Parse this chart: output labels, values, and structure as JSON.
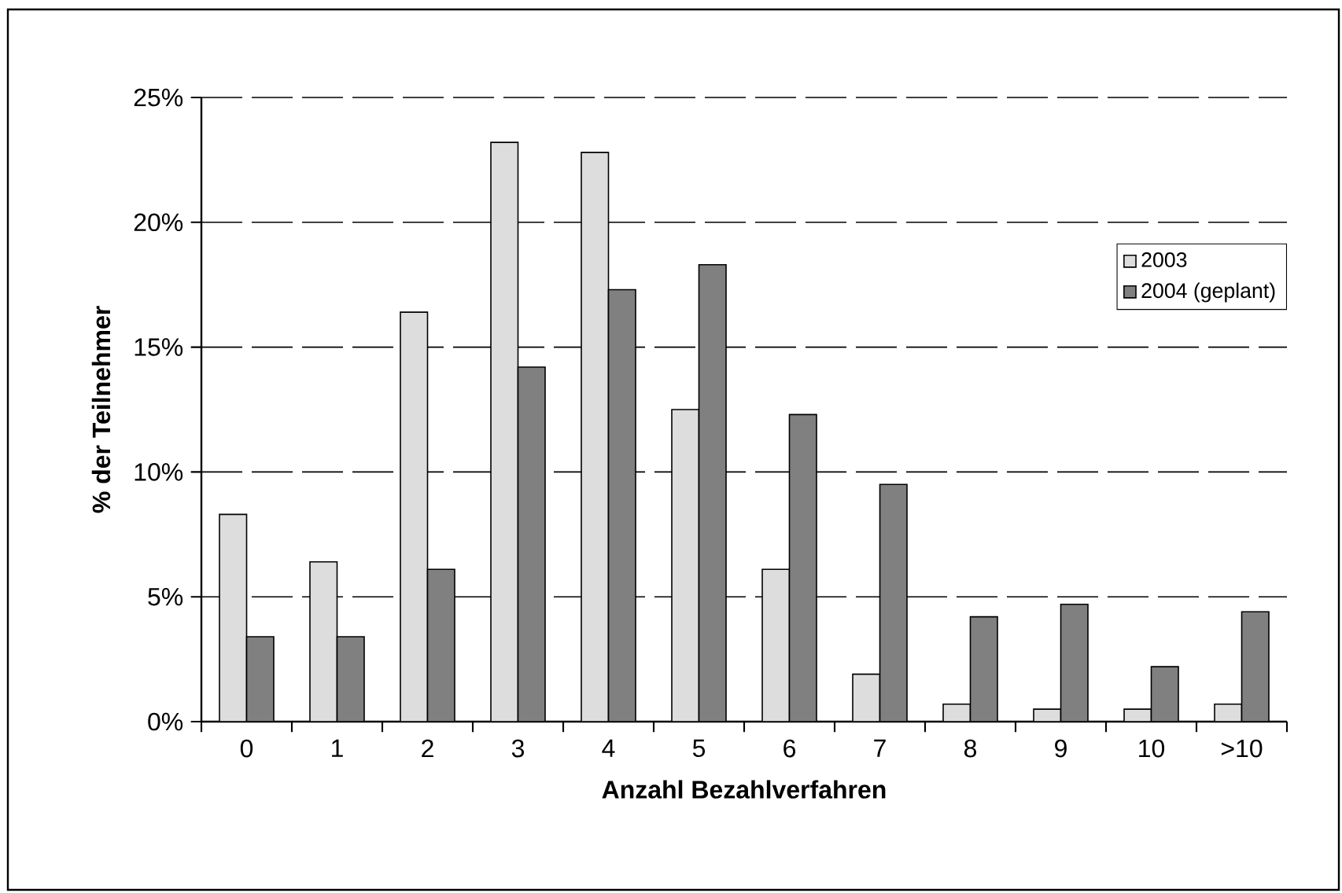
{
  "chart_data": {
    "type": "bar",
    "xlabel": "Anzahl Bezahlverfahren",
    "ylabel": "% der Teilnehmer",
    "categories": [
      "0",
      "1",
      "2",
      "3",
      "4",
      "5",
      "6",
      "7",
      "8",
      "9",
      "10",
      ">10"
    ],
    "series": [
      {
        "name": "2003",
        "color": "#dddddd",
        "values": [
          8.3,
          6.4,
          16.4,
          23.2,
          22.8,
          12.5,
          6.1,
          1.9,
          0.7,
          0.5,
          0.5,
          0.7
        ]
      },
      {
        "name": "2004 (geplant)",
        "color": "#808080",
        "values": [
          3.4,
          3.4,
          6.1,
          14.2,
          17.3,
          18.3,
          12.3,
          9.5,
          4.2,
          4.7,
          2.2,
          4.4
        ]
      }
    ],
    "ylim": [
      0,
      25
    ],
    "yticks": [
      {
        "value": 0,
        "label": "0%"
      },
      {
        "value": 5,
        "label": "5%"
      },
      {
        "value": 10,
        "label": "10%"
      },
      {
        "value": 15,
        "label": "15%"
      },
      {
        "value": 20,
        "label": "20%"
      },
      {
        "value": 25,
        "label": "25%"
      }
    ],
    "grid": "y",
    "legend": "top right"
  }
}
